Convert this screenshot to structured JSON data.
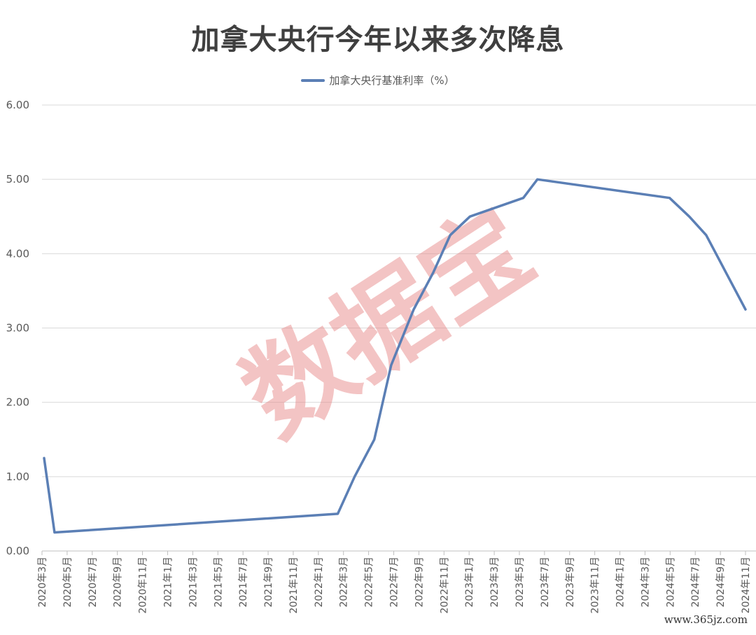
{
  "chart_data": {
    "type": "line",
    "title": "加拿大央行今年以来多次降息",
    "series": [
      {
        "name": "加拿大央行基准利率（%）",
        "color": "#5b7fb5",
        "points": [
          {
            "x": "2020-03-01",
            "y": 1.25
          },
          {
            "x": "2020-03-27",
            "y": 0.25
          },
          {
            "x": "2022-03-02",
            "y": 0.5
          },
          {
            "x": "2022-04-13",
            "y": 1.0
          },
          {
            "x": "2022-06-01",
            "y": 1.5
          },
          {
            "x": "2022-07-13",
            "y": 2.5
          },
          {
            "x": "2022-09-07",
            "y": 3.25
          },
          {
            "x": "2022-10-26",
            "y": 3.75
          },
          {
            "x": "2022-12-07",
            "y": 4.25
          },
          {
            "x": "2023-01-25",
            "y": 4.5
          },
          {
            "x": "2023-06-07",
            "y": 4.75
          },
          {
            "x": "2023-07-12",
            "y": 5.0
          },
          {
            "x": "2024-06-05",
            "y": 4.75
          },
          {
            "x": "2024-07-24",
            "y": 4.5
          },
          {
            "x": "2024-09-04",
            "y": 4.25
          },
          {
            "x": "2024-10-23",
            "y": 3.75
          },
          {
            "x": "2024-12-11",
            "y": 3.25
          }
        ]
      }
    ],
    "x_ticks": [
      "2020年3月",
      "2020年5月",
      "2020年7月",
      "2020年9月",
      "2020年11月",
      "2021年1月",
      "2021年3月",
      "2021年5月",
      "2021年7月",
      "2021年9月",
      "2021年11月",
      "2022年1月",
      "2022年3月",
      "2022年5月",
      "2022年7月",
      "2022年9月",
      "2022年11月",
      "2023年1月",
      "2023年3月",
      "2023年5月",
      "2023年7月",
      "2023年9月",
      "2023年11月",
      "2024年1月",
      "2024年3月",
      "2024年5月",
      "2024年7月",
      "2024年9月",
      "2024年11月"
    ],
    "y_ticks": [
      "0.00",
      "1.00",
      "2.00",
      "3.00",
      "4.00",
      "5.00",
      "6.00"
    ],
    "ylim": [
      0,
      6
    ],
    "xlim": [
      "2020-03-01",
      "2024-12-11"
    ],
    "grid": true,
    "legend": "top-center"
  },
  "watermark": "数据宝",
  "site_mark": "www.365jz.com"
}
